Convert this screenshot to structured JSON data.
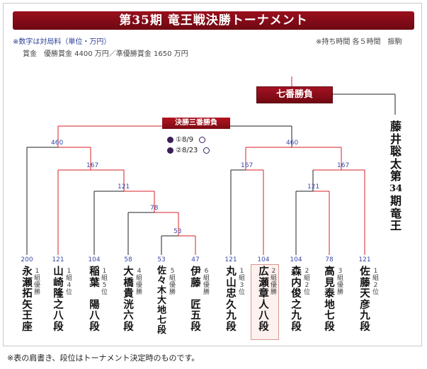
{
  "title": "第35期 竜王戦決勝トーナメント",
  "notes": {
    "left1": "※数字は対局料（単位・万円）",
    "left2": "賞金　優勝賞金 4400 万円／準優勝賞金 1650 万円",
    "right": "※持ち時間 各５時間　振駒"
  },
  "seven_game_label": "七番勝負",
  "final_label": "決勝三番勝負",
  "games": [
    {
      "label": "①8/9"
    },
    {
      "label": "②8/23"
    }
  ],
  "champion": {
    "chars": [
      "藤",
      "井",
      "聡",
      "太",
      "第",
      "34",
      "期",
      "竜",
      "王"
    ]
  },
  "node_fees": {
    "left_460": "460",
    "right_460": "460",
    "left_167": "167",
    "right_167a": "167",
    "right_167b": "167",
    "n121_left": "121",
    "n121_right": "121",
    "n78": "78",
    "n53": "53"
  },
  "players": [
    {
      "fee": "200",
      "name": [
        "永",
        "瀬",
        "拓",
        "矢",
        "王",
        "座"
      ],
      "note": [
        "1",
        "組",
        "優",
        "勝"
      ]
    },
    {
      "fee": "121",
      "name": [
        "山",
        "崎",
        "隆",
        "之",
        "八",
        "段"
      ],
      "note": [
        "1",
        "組",
        "4",
        "位"
      ]
    },
    {
      "fee": "104",
      "name": [
        "稲",
        "葉",
        "　",
        "陽",
        "八",
        "段"
      ],
      "note": [
        "1",
        "組",
        "5",
        "位"
      ]
    },
    {
      "fee": "58",
      "name": [
        "大",
        "橋",
        "貴",
        "洸",
        "六",
        "段"
      ],
      "note": [
        "4",
        "組",
        "優",
        "勝"
      ]
    },
    {
      "fee": "53",
      "name": [
        "佐",
        "々",
        "木",
        "大",
        "地",
        "七",
        "段"
      ],
      "note": [
        "5",
        "組",
        "優",
        "勝"
      ]
    },
    {
      "fee": "47",
      "name": [
        "伊",
        "藤",
        "　",
        "匠",
        "五",
        "段"
      ],
      "note": [
        "6",
        "組",
        "優",
        "勝"
      ]
    },
    {
      "fee": "121",
      "name": [
        "丸",
        "山",
        "忠",
        "久",
        "九",
        "段"
      ],
      "note": [
        "1",
        "組",
        "3",
        "位"
      ]
    },
    {
      "fee": "104",
      "name": [
        "広",
        "瀬",
        "章",
        "人",
        "八",
        "段"
      ],
      "note": [
        "2",
        "組",
        "優",
        "勝"
      ]
    },
    {
      "fee": "104",
      "name": [
        "森",
        "内",
        "俊",
        "之",
        "九",
        "段"
      ],
      "note": [
        "2",
        "組",
        "2",
        "位"
      ]
    },
    {
      "fee": "78",
      "name": [
        "高",
        "見",
        "泰",
        "地",
        "七",
        "段"
      ],
      "note": [
        "3",
        "組",
        "優",
        "勝"
      ]
    },
    {
      "fee": "121",
      "name": [
        "佐",
        "藤",
        "天",
        "彦",
        "九",
        "段"
      ],
      "note": [
        "1",
        "組",
        "2",
        "位"
      ]
    }
  ],
  "footer": "※表の肩書き、段位はトーナメント決定時のものです。",
  "colors": {
    "winner_line": "#d6202a",
    "line": "#222222",
    "banner": "#8b0d18",
    "fee": "#3a4aa8"
  }
}
